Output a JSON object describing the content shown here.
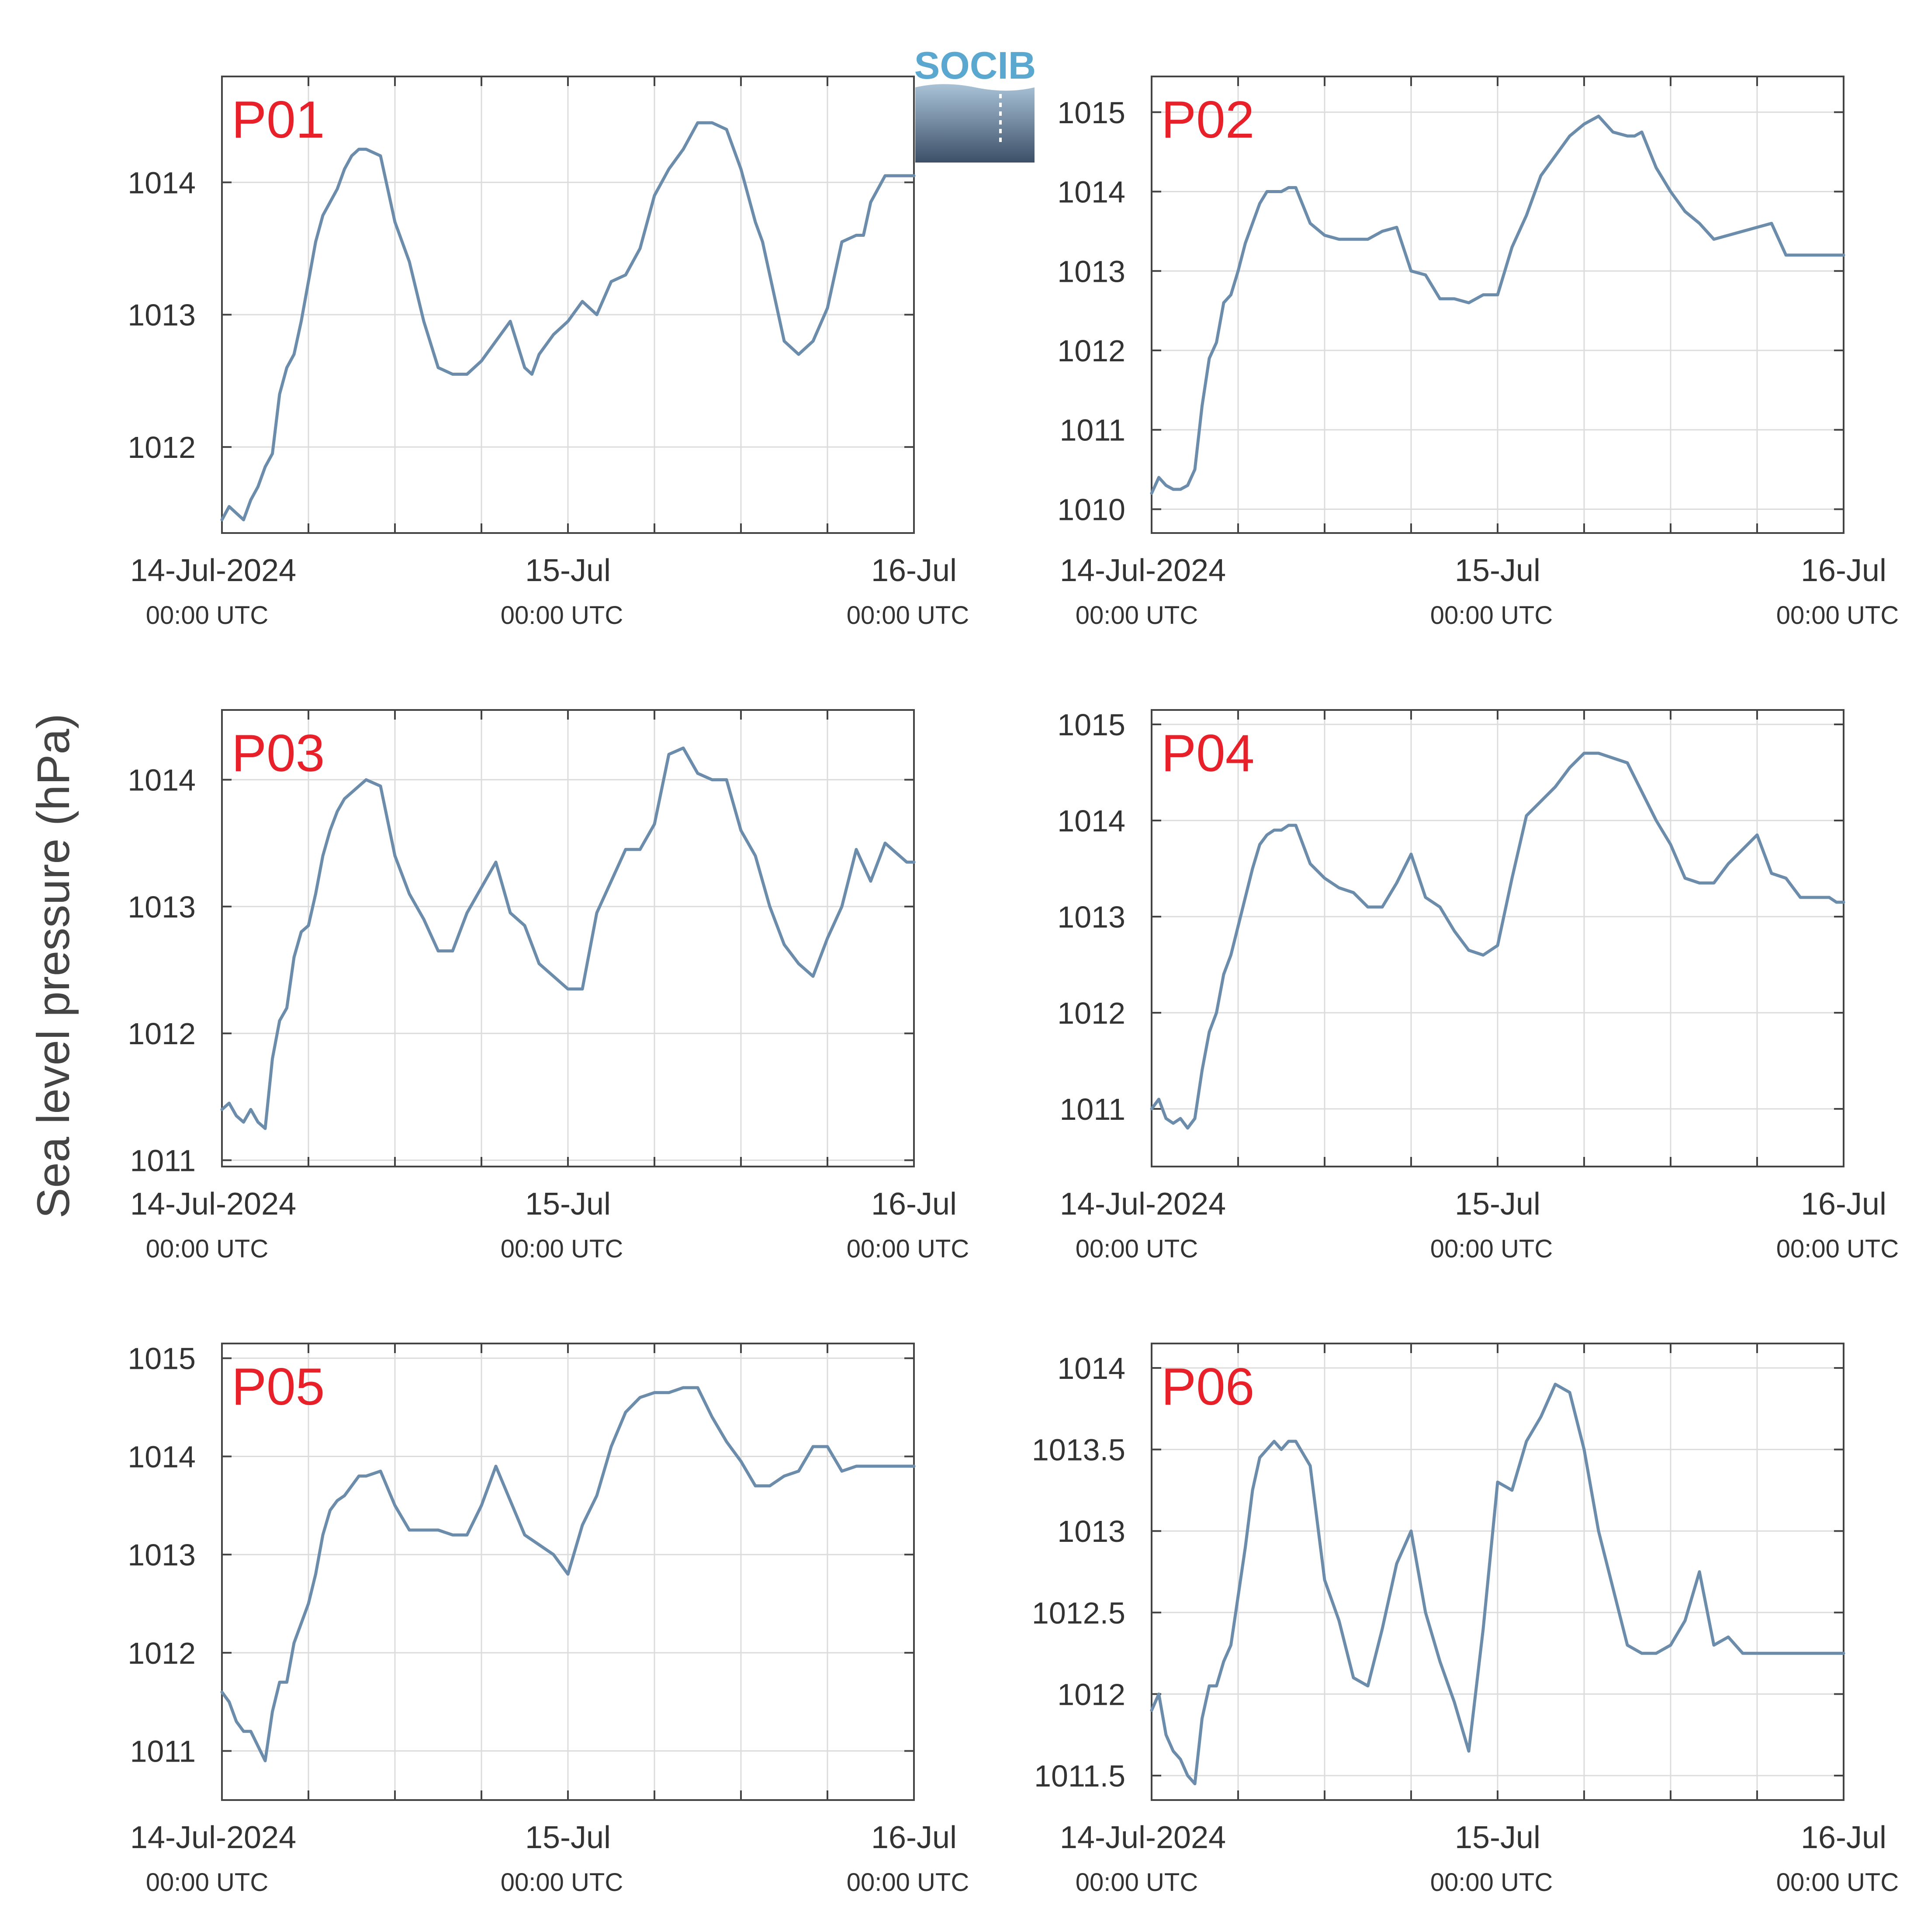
{
  "ylabel": "Sea level pressure (hPa)",
  "logo_text": "SOCIB",
  "style": {
    "line_color": "#6c8cab",
    "panel_label_color": "#e8202a",
    "grid_color": "#dcdcdc",
    "axis_color": "#444444",
    "text_color": "#333333"
  },
  "x_ticks": [
    {
      "hour": 0,
      "date_label": "14-Jul-2024",
      "time_label": "00:00 UTC"
    },
    {
      "hour": 24,
      "date_label": "15-Jul",
      "time_label": "00:00 UTC"
    },
    {
      "hour": 48,
      "date_label": "16-Jul",
      "time_label": "00:00 UTC"
    }
  ],
  "chart_data": [
    {
      "type": "line",
      "name": "P01",
      "x_unit": "hours since 14-Jul-2024 00:00 UTC",
      "xlim": [
        0,
        48
      ],
      "ylim": [
        1011.35,
        1014.8
      ],
      "yticks": [
        1012,
        1013,
        1014
      ],
      "x": [
        0,
        0.5,
        1,
        1.5,
        2,
        2.5,
        3,
        3.5,
        4,
        4.5,
        5,
        5.5,
        6,
        6.5,
        7,
        7.5,
        8,
        8.5,
        9,
        9.5,
        10,
        11,
        12,
        13,
        14,
        15,
        16,
        17,
        18,
        19,
        20,
        21,
        21.5,
        22,
        23,
        24,
        25,
        26,
        27,
        28,
        29,
        30,
        31,
        32,
        33,
        34,
        35,
        36,
        36.5,
        37,
        37.5,
        38,
        39,
        40,
        41,
        42,
        43,
        44,
        44.5,
        45,
        46,
        47,
        48
      ],
      "values": [
        1011.45,
        1011.55,
        1011.5,
        1011.45,
        1011.6,
        1011.7,
        1011.85,
        1011.95,
        1012.4,
        1012.6,
        1012.7,
        1012.95,
        1013.25,
        1013.55,
        1013.75,
        1013.85,
        1013.95,
        1014.1,
        1014.2,
        1014.25,
        1014.25,
        1014.2,
        1013.7,
        1013.4,
        1012.95,
        1012.6,
        1012.55,
        1012.55,
        1012.65,
        1012.8,
        1012.95,
        1012.6,
        1012.55,
        1012.7,
        1012.85,
        1012.95,
        1013.1,
        1013.0,
        1013.25,
        1013.3,
        1013.5,
        1013.9,
        1014.1,
        1014.25,
        1014.45,
        1014.45,
        1014.4,
        1014.1,
        1013.9,
        1013.7,
        1013.55,
        1013.3,
        1012.8,
        1012.7,
        1012.8,
        1013.05,
        1013.55,
        1013.6,
        1013.6,
        1013.85,
        1014.05,
        1014.05,
        1014.05
      ]
    },
    {
      "type": "line",
      "name": "P02",
      "x_unit": "hours since 14-Jul-2024 00:00 UTC",
      "xlim": [
        0,
        48
      ],
      "ylim": [
        1009.7,
        1015.45
      ],
      "yticks": [
        1010,
        1011,
        1012,
        1013,
        1014,
        1015
      ],
      "x": [
        0,
        0.5,
        1,
        1.5,
        2,
        2.5,
        3,
        3.5,
        4,
        4.5,
        5,
        5.5,
        6,
        6.5,
        7,
        7.5,
        8,
        8.5,
        9,
        9.5,
        10,
        11,
        12,
        13,
        14,
        15,
        16,
        17,
        18,
        19,
        20,
        21,
        22,
        23,
        24,
        25,
        26,
        27,
        28,
        29,
        30,
        31,
        32,
        33,
        33.5,
        34,
        35,
        36,
        37,
        38,
        39,
        40,
        41,
        42,
        43,
        44,
        45,
        46,
        46.5,
        47,
        48
      ],
      "values": [
        1010.2,
        1010.4,
        1010.3,
        1010.25,
        1010.25,
        1010.3,
        1010.5,
        1011.3,
        1011.9,
        1012.1,
        1012.6,
        1012.7,
        1013.0,
        1013.35,
        1013.6,
        1013.85,
        1014.0,
        1014.0,
        1014.0,
        1014.05,
        1014.05,
        1013.6,
        1013.45,
        1013.4,
        1013.4,
        1013.4,
        1013.5,
        1013.55,
        1013.0,
        1012.95,
        1012.65,
        1012.65,
        1012.6,
        1012.7,
        1012.7,
        1013.3,
        1013.7,
        1014.2,
        1014.45,
        1014.7,
        1014.85,
        1014.95,
        1014.75,
        1014.7,
        1014.7,
        1014.75,
        1014.3,
        1014.0,
        1013.75,
        1013.6,
        1013.4,
        1013.45,
        1013.5,
        1013.55,
        1013.6,
        1013.2,
        1013.2,
        1013.2,
        1013.2,
        1013.2,
        1013.2
      ]
    },
    {
      "type": "line",
      "name": "P03",
      "x_unit": "hours since 14-Jul-2024 00:00 UTC",
      "xlim": [
        0,
        48
      ],
      "ylim": [
        1010.95,
        1014.55
      ],
      "yticks": [
        1011,
        1012,
        1013,
        1014
      ],
      "x": [
        0,
        0.5,
        1,
        1.5,
        2,
        2.5,
        3,
        3.5,
        4,
        4.5,
        5,
        5.5,
        6,
        6.5,
        7,
        7.5,
        8,
        8.5,
        9,
        9.5,
        10,
        11,
        12,
        13,
        14,
        15,
        16,
        17,
        18,
        19,
        20,
        21,
        22,
        23,
        24,
        25,
        26,
        27,
        28,
        29,
        30,
        31,
        32,
        33,
        34,
        35,
        36,
        37,
        38,
        39,
        40,
        40.5,
        41,
        42,
        43,
        44,
        45,
        46,
        46.5,
        47,
        47.5,
        48
      ],
      "values": [
        1011.4,
        1011.45,
        1011.35,
        1011.3,
        1011.4,
        1011.3,
        1011.25,
        1011.8,
        1012.1,
        1012.2,
        1012.6,
        1012.8,
        1012.85,
        1013.1,
        1013.4,
        1013.6,
        1013.75,
        1013.85,
        1013.9,
        1013.95,
        1014.0,
        1013.95,
        1013.4,
        1013.1,
        1012.9,
        1012.65,
        1012.65,
        1012.95,
        1013.15,
        1013.35,
        1012.95,
        1012.85,
        1012.55,
        1012.45,
        1012.35,
        1012.35,
        1012.95,
        1013.2,
        1013.45,
        1013.45,
        1013.65,
        1014.2,
        1014.25,
        1014.05,
        1014.0,
        1014.0,
        1013.6,
        1013.4,
        1013.0,
        1012.7,
        1012.55,
        1012.5,
        1012.45,
        1012.75,
        1013.0,
        1013.45,
        1013.2,
        1013.5,
        1013.45,
        1013.4,
        1013.35,
        1013.35
      ]
    },
    {
      "type": "line",
      "name": "P04",
      "x_unit": "hours since 14-Jul-2024 00:00 UTC",
      "xlim": [
        0,
        48
      ],
      "ylim": [
        1010.4,
        1015.15
      ],
      "yticks": [
        1011,
        1012,
        1013,
        1014,
        1015
      ],
      "x": [
        0,
        0.5,
        1,
        1.5,
        2,
        2.5,
        3,
        3.5,
        4,
        4.5,
        5,
        5.5,
        6,
        6.5,
        7,
        7.5,
        8,
        8.5,
        9,
        9.5,
        10,
        11,
        12,
        13,
        14,
        15,
        16,
        17,
        18,
        19,
        20,
        21,
        22,
        23,
        24,
        25,
        26,
        27,
        28,
        29,
        30,
        31,
        32,
        33,
        34,
        35,
        36,
        37,
        38,
        39,
        40,
        41,
        42,
        43,
        44,
        45,
        45.5,
        46,
        46.5,
        47,
        47.5,
        48
      ],
      "values": [
        1011.0,
        1011.1,
        1010.9,
        1010.85,
        1010.9,
        1010.8,
        1010.9,
        1011.4,
        1011.8,
        1012.0,
        1012.4,
        1012.6,
        1012.9,
        1013.2,
        1013.5,
        1013.75,
        1013.85,
        1013.9,
        1013.9,
        1013.95,
        1013.95,
        1013.55,
        1013.4,
        1013.3,
        1013.25,
        1013.1,
        1013.1,
        1013.35,
        1013.65,
        1013.2,
        1013.1,
        1012.85,
        1012.65,
        1012.6,
        1012.7,
        1013.4,
        1014.05,
        1014.2,
        1014.35,
        1014.55,
        1014.7,
        1014.7,
        1014.65,
        1014.6,
        1014.3,
        1014.0,
        1013.75,
        1013.4,
        1013.35,
        1013.35,
        1013.55,
        1013.7,
        1013.85,
        1013.45,
        1013.4,
        1013.2,
        1013.2,
        1013.2,
        1013.2,
        1013.2,
        1013.15,
        1013.15
      ]
    },
    {
      "type": "line",
      "name": "P05",
      "x_unit": "hours since 14-Jul-2024 00:00 UTC",
      "xlim": [
        0,
        48
      ],
      "ylim": [
        1010.5,
        1015.15
      ],
      "yticks": [
        1011,
        1012,
        1013,
        1014,
        1015
      ],
      "x": [
        0,
        0.5,
        1,
        1.5,
        2,
        2.5,
        3,
        3.5,
        4,
        4.5,
        5,
        5.5,
        6,
        6.5,
        7,
        7.5,
        8,
        8.5,
        9,
        9.5,
        10,
        11,
        12,
        13,
        14,
        15,
        16,
        17,
        18,
        19,
        20,
        21,
        22,
        23,
        24,
        25,
        26,
        27,
        28,
        29,
        30,
        31,
        32,
        33,
        34,
        35,
        36,
        37,
        38,
        39,
        40,
        41,
        42,
        43,
        44,
        44.5,
        45,
        46,
        46.5,
        47,
        48
      ],
      "values": [
        1011.6,
        1011.5,
        1011.3,
        1011.2,
        1011.2,
        1011.05,
        1010.9,
        1011.4,
        1011.7,
        1011.7,
        1012.1,
        1012.3,
        1012.5,
        1012.8,
        1013.2,
        1013.45,
        1013.55,
        1013.6,
        1013.7,
        1013.8,
        1013.8,
        1013.85,
        1013.5,
        1013.25,
        1013.25,
        1013.25,
        1013.2,
        1013.2,
        1013.5,
        1013.9,
        1013.55,
        1013.2,
        1013.1,
        1013.0,
        1012.8,
        1013.3,
        1013.6,
        1014.1,
        1014.45,
        1014.6,
        1014.65,
        1014.65,
        1014.7,
        1014.7,
        1014.4,
        1014.15,
        1013.95,
        1013.7,
        1013.7,
        1013.8,
        1013.85,
        1014.1,
        1014.1,
        1013.85,
        1013.9,
        1013.9,
        1013.9,
        1013.9,
        1013.9,
        1013.9,
        1013.9
      ]
    },
    {
      "type": "line",
      "name": "P06",
      "x_unit": "hours since 14-Jul-2024 00:00 UTC",
      "xlim": [
        0,
        48
      ],
      "ylim": [
        1011.35,
        1014.15
      ],
      "yticks": [
        1011.5,
        1012,
        1012.5,
        1013,
        1013.5,
        1014
      ],
      "x": [
        0,
        0.5,
        1,
        1.5,
        2,
        2.5,
        3,
        3.5,
        4,
        4.5,
        5,
        5.5,
        6,
        6.5,
        7,
        7.5,
        8,
        8.5,
        9,
        9.5,
        10,
        11,
        12,
        13,
        14,
        15,
        16,
        17,
        18,
        19,
        20,
        21,
        22,
        23,
        24,
        25,
        26,
        27,
        28,
        29,
        30,
        31,
        32,
        33,
        34,
        35,
        36,
        37,
        38,
        39,
        40,
        41,
        42,
        43,
        44,
        44.5,
        45,
        46,
        46.5,
        47,
        47.5,
        48
      ],
      "values": [
        1011.9,
        1012.0,
        1011.75,
        1011.65,
        1011.6,
        1011.5,
        1011.45,
        1011.85,
        1012.05,
        1012.05,
        1012.2,
        1012.3,
        1012.6,
        1012.9,
        1013.25,
        1013.45,
        1013.5,
        1013.55,
        1013.5,
        1013.55,
        1013.55,
        1013.4,
        1012.7,
        1012.45,
        1012.1,
        1012.05,
        1012.4,
        1012.8,
        1013.0,
        1012.5,
        1012.2,
        1011.95,
        1011.65,
        1012.4,
        1013.3,
        1013.25,
        1013.55,
        1013.7,
        1013.9,
        1013.85,
        1013.5,
        1013.0,
        1012.65,
        1012.3,
        1012.25,
        1012.25,
        1012.3,
        1012.45,
        1012.75,
        1012.3,
        1012.35,
        1012.25,
        1012.25,
        1012.25,
        1012.25,
        1012.25,
        1012.25,
        1012.25,
        1012.25,
        1012.25,
        1012.25,
        1012.25
      ]
    }
  ]
}
